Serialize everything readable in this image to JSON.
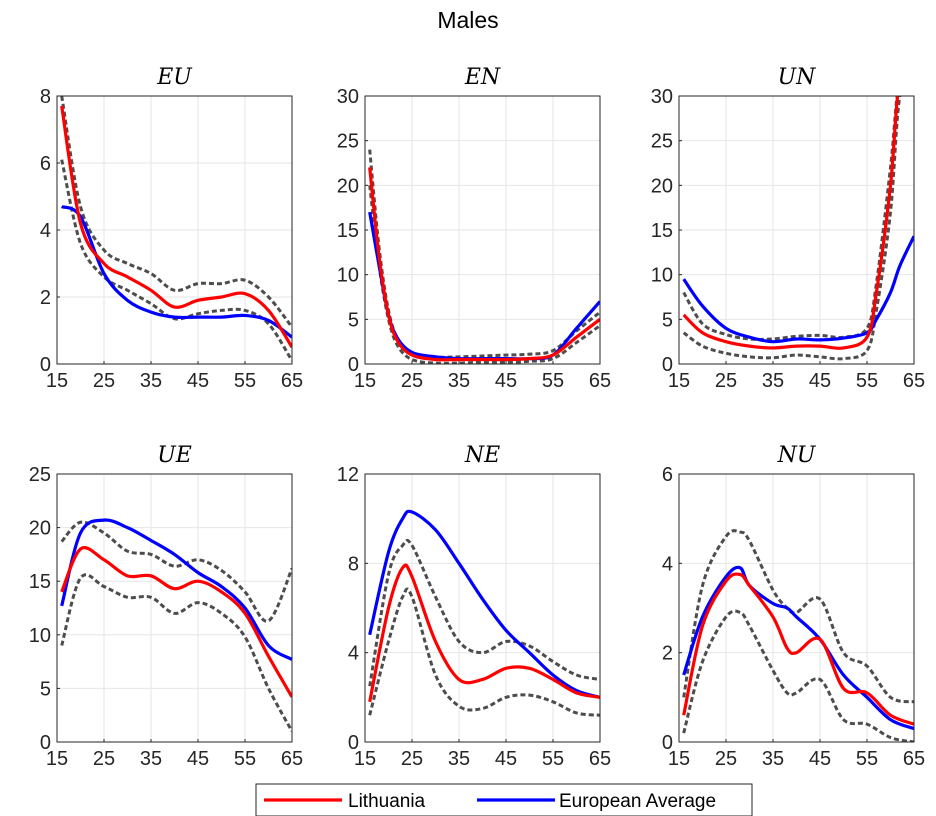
{
  "figure": {
    "title": "Males"
  },
  "legend": {
    "placement": "bottom-center",
    "items": [
      {
        "label": "Lithuania",
        "color": "#ff0000"
      },
      {
        "label": "European Average",
        "color": "#0000ff"
      }
    ]
  },
  "colors": {
    "lithuania": "#ff0000",
    "european_average": "#0000ff",
    "bounds": "#4d4d4d",
    "grid": "#e6e6e6"
  },
  "chart_data": [
    {
      "type": "line",
      "title": "EU",
      "xlim": [
        15,
        65
      ],
      "ylim": [
        0,
        8
      ],
      "xticks": [
        15,
        25,
        35,
        45,
        55,
        65
      ],
      "yticks": [
        0,
        2,
        4,
        6,
        8
      ],
      "grid": true,
      "x": [
        16,
        20,
        25,
        30,
        35,
        40,
        45,
        50,
        55,
        60,
        65
      ],
      "series": [
        {
          "name": "Lithuania",
          "values": [
            7.7,
            4.2,
            3.0,
            2.6,
            2.2,
            1.7,
            1.9,
            2.0,
            2.1,
            1.6,
            0.5
          ]
        },
        {
          "name": "European Average",
          "values": [
            4.7,
            4.4,
            2.7,
            1.9,
            1.55,
            1.4,
            1.4,
            1.4,
            1.45,
            1.3,
            0.8
          ]
        },
        {
          "name": "",
          "style": "dashed",
          "values": [
            8.0,
            4.7,
            3.4,
            3.0,
            2.7,
            2.2,
            2.4,
            2.4,
            2.5,
            2.0,
            1.1
          ]
        },
        {
          "name": "",
          "style": "dashed",
          "values": [
            6.1,
            3.6,
            2.6,
            2.2,
            1.8,
            1.35,
            1.5,
            1.6,
            1.6,
            1.2,
            0.1
          ]
        }
      ]
    },
    {
      "type": "line",
      "title": "EN",
      "xlim": [
        15,
        65
      ],
      "ylim": [
        0,
        30
      ],
      "xticks": [
        15,
        25,
        35,
        45,
        55,
        65
      ],
      "yticks": [
        0,
        5,
        10,
        15,
        20,
        25,
        30
      ],
      "grid": true,
      "x": [
        16,
        18,
        20,
        22,
        25,
        30,
        35,
        40,
        45,
        50,
        55,
        60,
        65
      ],
      "series": [
        {
          "name": "Lithuania",
          "values": [
            22,
            12,
            5.5,
            2.5,
            1.0,
            0.5,
            0.5,
            0.5,
            0.5,
            0.6,
            1.0,
            3.0,
            5.0
          ]
        },
        {
          "name": "European Average",
          "values": [
            17,
            11,
            5.5,
            2.8,
            1.3,
            0.8,
            0.6,
            0.6,
            0.6,
            0.6,
            1.0,
            4.0,
            7.0
          ]
        },
        {
          "name": "",
          "style": "dashed",
          "values": [
            24,
            13,
            6.0,
            2.8,
            1.3,
            0.8,
            0.8,
            0.9,
            1.0,
            1.1,
            1.5,
            3.7,
            5.8
          ]
        },
        {
          "name": "",
          "style": "dashed",
          "values": [
            20,
            11,
            5.0,
            2.0,
            0.5,
            0.1,
            0.1,
            0.2,
            0.2,
            0.3,
            0.6,
            2.4,
            4.3
          ]
        }
      ]
    },
    {
      "type": "line",
      "title": "UN",
      "xlim": [
        15,
        65
      ],
      "ylim": [
        0,
        30
      ],
      "xticks": [
        15,
        25,
        35,
        45,
        55,
        65
      ],
      "yticks": [
        0,
        5,
        10,
        15,
        20,
        25,
        30
      ],
      "grid": true,
      "x": [
        16,
        20,
        25,
        30,
        35,
        40,
        45,
        50,
        55,
        57,
        60,
        62,
        65
      ],
      "series": [
        {
          "name": "Lithuania",
          "values": [
            5.5,
            3.5,
            2.5,
            2.0,
            1.8,
            2.0,
            2.0,
            1.8,
            3.0,
            8.0,
            20,
            32,
            32
          ]
        },
        {
          "name": "European Average",
          "values": [
            9.5,
            6.5,
            4.0,
            3.0,
            2.5,
            2.8,
            2.7,
            2.9,
            3.5,
            5.0,
            8.0,
            11.0,
            14.3
          ]
        },
        {
          "name": "",
          "style": "dashed",
          "values": [
            8.0,
            4.5,
            3.3,
            2.8,
            2.8,
            3.1,
            3.2,
            3.0,
            4.0,
            9.0,
            22,
            32,
            32
          ]
        },
        {
          "name": "",
          "style": "dashed",
          "values": [
            3.5,
            2.0,
            1.2,
            0.8,
            0.7,
            1.0,
            0.8,
            0.6,
            1.5,
            6.0,
            17,
            30,
            32
          ]
        }
      ]
    },
    {
      "type": "line",
      "title": "UE",
      "xlim": [
        15,
        65
      ],
      "ylim": [
        0,
        25
      ],
      "xticks": [
        15,
        25,
        35,
        45,
        55,
        65
      ],
      "yticks": [
        0,
        5,
        10,
        15,
        20,
        25
      ],
      "grid": true,
      "x": [
        16,
        20,
        25,
        30,
        35,
        40,
        45,
        50,
        55,
        60,
        65
      ],
      "series": [
        {
          "name": "Lithuania",
          "values": [
            14.0,
            18.0,
            17.0,
            15.5,
            15.5,
            14.3,
            15.0,
            14.0,
            12.0,
            8.0,
            4.2
          ]
        },
        {
          "name": "European Average",
          "values": [
            12.7,
            19.5,
            20.7,
            20.0,
            18.8,
            17.5,
            15.8,
            14.5,
            12.5,
            9.0,
            7.7
          ]
        },
        {
          "name": "",
          "style": "dashed",
          "values": [
            18.7,
            20.5,
            19.5,
            17.8,
            17.5,
            16.4,
            17.0,
            16.0,
            14.0,
            11.3,
            16.2
          ]
        },
        {
          "name": "",
          "style": "dashed",
          "values": [
            9.0,
            15.3,
            14.5,
            13.5,
            13.5,
            12.0,
            13.0,
            12.0,
            9.8,
            5.0,
            1.0
          ]
        }
      ]
    },
    {
      "type": "line",
      "title": "NE",
      "xlim": [
        15,
        65
      ],
      "ylim": [
        0,
        12
      ],
      "xticks": [
        15,
        25,
        35,
        45,
        55,
        65
      ],
      "yticks": [
        0,
        4,
        8,
        12
      ],
      "grid": true,
      "x": [
        16,
        20,
        23,
        25,
        30,
        35,
        40,
        45,
        50,
        55,
        60,
        65
      ],
      "series": [
        {
          "name": "Lithuania",
          "values": [
            1.8,
            6.0,
            7.8,
            7.4,
            4.5,
            2.8,
            2.8,
            3.3,
            3.3,
            2.8,
            2.2,
            2.0
          ]
        },
        {
          "name": "European Average",
          "values": [
            4.8,
            8.5,
            10.0,
            10.3,
            9.5,
            8.0,
            6.4,
            5.0,
            4.0,
            3.0,
            2.3,
            2.0
          ]
        },
        {
          "name": "",
          "style": "dashed",
          "values": [
            2.5,
            7.5,
            8.8,
            8.8,
            6.5,
            4.5,
            4.0,
            4.5,
            4.3,
            3.6,
            3.0,
            2.8
          ]
        },
        {
          "name": "",
          "style": "dashed",
          "values": [
            1.2,
            4.5,
            6.5,
            6.5,
            3.0,
            1.6,
            1.5,
            2.0,
            2.1,
            1.8,
            1.3,
            1.2
          ]
        }
      ]
    },
    {
      "type": "line",
      "title": "NU",
      "xlim": [
        15,
        65
      ],
      "ylim": [
        0,
        6
      ],
      "xticks": [
        15,
        25,
        35,
        45,
        55,
        65
      ],
      "yticks": [
        0,
        2,
        4,
        6
      ],
      "grid": true,
      "x": [
        16,
        20,
        25,
        28,
        30,
        35,
        38,
        40,
        45,
        50,
        55,
        60,
        65
      ],
      "series": [
        {
          "name": "Lithuania",
          "values": [
            0.6,
            2.6,
            3.6,
            3.75,
            3.5,
            2.8,
            2.1,
            2.0,
            2.3,
            1.2,
            1.1,
            0.6,
            0.4
          ]
        },
        {
          "name": "European Average",
          "values": [
            1.5,
            2.8,
            3.7,
            3.9,
            3.5,
            3.1,
            3.0,
            2.8,
            2.3,
            1.5,
            1.0,
            0.5,
            0.3
          ]
        },
        {
          "name": "",
          "style": "dashed",
          "values": [
            1.0,
            3.5,
            4.6,
            4.7,
            4.5,
            3.4,
            3.0,
            2.9,
            3.2,
            2.0,
            1.7,
            1.0,
            0.9
          ]
        },
        {
          "name": "",
          "style": "dashed",
          "values": [
            0.2,
            1.8,
            2.8,
            2.9,
            2.6,
            1.6,
            1.1,
            1.1,
            1.4,
            0.5,
            0.4,
            0.1,
            0.0
          ]
        }
      ]
    }
  ]
}
